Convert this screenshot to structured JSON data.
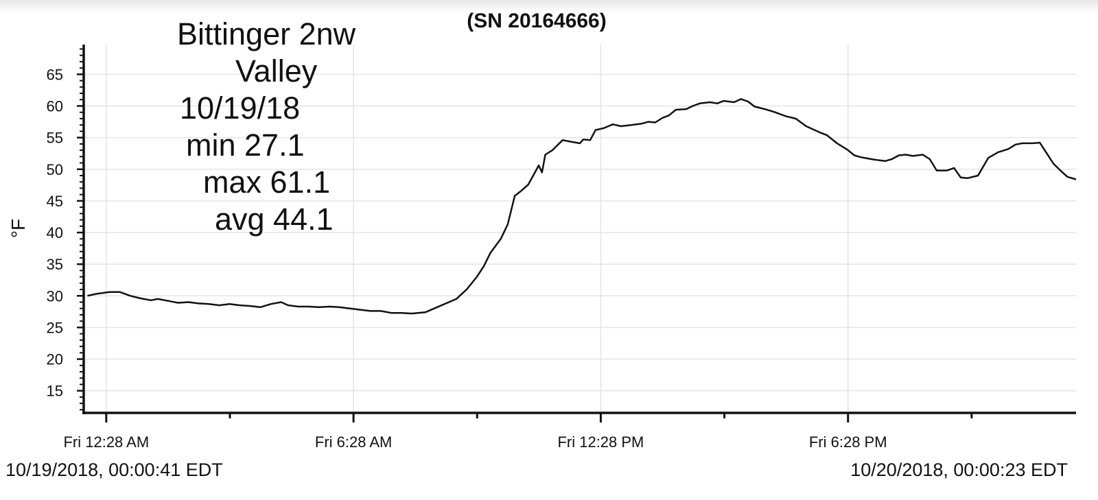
{
  "chart_data": {
    "type": "line",
    "title": "(SN 20164666)",
    "y_label": "°F",
    "annotations": [
      "Bittinger 2nw",
      "Valley",
      "10/19/18",
      "min 27.1",
      "max 61.1",
      "avg 44.1"
    ],
    "start_label": "10/19/2018, 00:00:41 EDT",
    "end_label": "10/20/2018, 00:00:23 EDT",
    "x": [
      0.01,
      0.22,
      0.55,
      0.8,
      1.05,
      1.3,
      1.55,
      1.72,
      1.97,
      2.21,
      2.46,
      2.71,
      2.96,
      3.21,
      3.46,
      3.71,
      3.96,
      4.21,
      4.46,
      4.71,
      4.88,
      5.13,
      5.38,
      5.63,
      5.88,
      6.13,
      6.38,
      6.63,
      6.88,
      7.13,
      7.38,
      7.63,
      7.88,
      8.21,
      8.46,
      8.71,
      8.96,
      9.21,
      9.46,
      9.63,
      9.79,
      10.04,
      10.21,
      10.38,
      10.54,
      10.71,
      10.87,
      10.96,
      11.04,
      11.12,
      11.29,
      11.54,
      11.79,
      11.96,
      12.04,
      12.21,
      12.34,
      12.54,
      12.76,
      12.96,
      13.21,
      13.46,
      13.62,
      13.79,
      13.96,
      14.12,
      14.29,
      14.54,
      14.7,
      14.87,
      15.12,
      15.29,
      15.45,
      15.7,
      15.87,
      16.04,
      16.2,
      16.45,
      16.7,
      16.95,
      17.2,
      17.45,
      17.62,
      17.79,
      17.95,
      18.2,
      18.45,
      18.62,
      18.78,
      18.95,
      19.12,
      19.37,
      19.53,
      19.7,
      19.87,
      20.04,
      20.28,
      20.45,
      20.62,
      20.87,
      21.04,
      21.2,
      21.37,
      21.62,
      21.87,
      22.11,
      22.36,
      22.53,
      22.7,
      22.95,
      23.12,
      23.29,
      23.45,
      23.62,
      23.79,
      24.0
    ],
    "series": [
      {
        "color": "#111111",
        "values": [
          30.0,
          30.3,
          30.6,
          30.6,
          30.0,
          29.6,
          29.3,
          29.5,
          29.2,
          28.9,
          29.0,
          28.8,
          28.7,
          28.5,
          28.7,
          28.5,
          28.4,
          28.2,
          28.7,
          29.0,
          28.5,
          28.3,
          28.3,
          28.2,
          28.3,
          28.2,
          28.0,
          27.8,
          27.6,
          27.6,
          27.3,
          27.3,
          27.2,
          27.4,
          28.1,
          28.8,
          29.5,
          31.0,
          33.0,
          34.7,
          36.8,
          39.0,
          41.3,
          45.8,
          46.6,
          47.6,
          49.5,
          50.6,
          49.5,
          52.3,
          53.0,
          54.6,
          54.3,
          54.1,
          54.7,
          54.6,
          56.2,
          56.5,
          57.1,
          56.8,
          57.0,
          57.2,
          57.5,
          57.4,
          58.1,
          58.5,
          59.4,
          59.5,
          60.0,
          60.4,
          60.6,
          60.4,
          60.8,
          60.6,
          61.1,
          60.7,
          59.9,
          59.5,
          59.0,
          58.4,
          58.0,
          56.8,
          56.3,
          55.8,
          55.4,
          54.1,
          53.1,
          52.2,
          51.9,
          51.7,
          51.5,
          51.3,
          51.6,
          52.2,
          52.3,
          52.1,
          52.3,
          51.6,
          49.8,
          49.8,
          50.2,
          48.7,
          48.6,
          49.0,
          51.8,
          52.7,
          53.2,
          53.9,
          54.1,
          54.1,
          54.2,
          52.5,
          50.9,
          49.8,
          48.8,
          48.4
        ]
      }
    ],
    "xlim": [
      -0.08,
      24.0
    ],
    "xticks": [
      {
        "value": 0.4667,
        "label": "Fri 12:28 AM"
      },
      {
        "value": 6.4667,
        "label": "Fri 6:28 AM"
      },
      {
        "value": 12.4667,
        "label": "Fri 12:28 PM"
      },
      {
        "value": 18.4667,
        "label": "Fri 6:28 PM"
      }
    ],
    "xminor_ticks": [
      3.4667,
      9.4667,
      15.4667,
      21.4667
    ],
    "ylim": [
      11.5,
      69.7
    ],
    "yticks": [
      15,
      20,
      25,
      30,
      35,
      40,
      45,
      50,
      55,
      60,
      65
    ],
    "yminor_step": 1,
    "grid": true
  }
}
